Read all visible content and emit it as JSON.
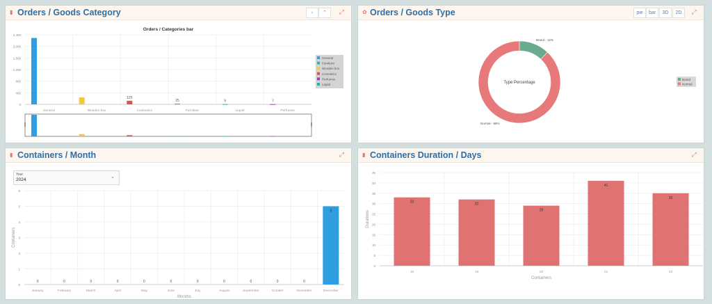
{
  "panels": {
    "goods_category": {
      "title": "Orders / Goods Category",
      "icon": "bar-chart-icon"
    },
    "goods_type": {
      "title": "Orders / Goods Type",
      "icon": "pie-chart-icon",
      "toolbar": [
        "pie",
        "bar",
        "3D",
        "2D"
      ]
    },
    "containers_month": {
      "title": "Containers / Month",
      "icon": "bar-chart-icon",
      "year_select": {
        "label": "Year",
        "value": "2024"
      }
    },
    "containers_duration": {
      "title": "Containers Duration / Days",
      "icon": "bar-chart-icon"
    }
  },
  "chart_data": [
    {
      "type": "bar",
      "title": "Orders / Categories bar",
      "categories": [
        "General",
        "Wooden box",
        "Cosmetics",
        "Furniture",
        "Liquid",
        "Perfumes"
      ],
      "values": [
        2290,
        240,
        125,
        25,
        9,
        7
      ],
      "data_labels": [
        null,
        null,
        "125",
        "25",
        "9",
        "7"
      ],
      "colors": [
        "#2f9ee0",
        "#f5c842",
        "#e05252",
        "#3bb39a",
        "#1abc9c",
        "#8e44ad"
      ],
      "ylim": [
        0,
        2400
      ],
      "yticks": [
        "0",
        "400",
        "800",
        "1,200",
        "1,600",
        "2,000",
        "2,400"
      ],
      "legend": {
        "position": "right",
        "entries": [
          {
            "name": "General",
            "color": "#2f9ee0"
          },
          {
            "name": "Furniture",
            "color": "#3bb39a"
          },
          {
            "name": "Wooden box",
            "color": "#f5c842"
          },
          {
            "name": "Cosmetics",
            "color": "#e05252"
          },
          {
            "name": "Perfumes",
            "color": "#8e44ad"
          },
          {
            "name": "Liquid",
            "color": "#1abc9c"
          }
        ]
      },
      "grid": true,
      "navigator": true
    },
    {
      "type": "pie",
      "center_label": "Type Percentage",
      "slices": [
        {
          "name": "Brand",
          "value": 12,
          "label": "Brand - 12%",
          "color": "#6aab8e"
        },
        {
          "name": "Normal",
          "value": 88,
          "label": "Normal - 88%",
          "color": "#e8797b"
        }
      ],
      "legend": {
        "position": "right"
      }
    },
    {
      "type": "bar",
      "categories": [
        "January",
        "February",
        "March",
        "April",
        "May",
        "June",
        "July",
        "August",
        "September",
        "October",
        "November",
        "December"
      ],
      "values": [
        0,
        0,
        0,
        0,
        0,
        0,
        0,
        0,
        0,
        0,
        0,
        5
      ],
      "color": "#2f9ee0",
      "xlabel": "Months",
      "ylabel": "Containers",
      "ylim": [
        0,
        6
      ],
      "yticks": [
        "0",
        "1",
        "2",
        "3",
        "4",
        "5",
        "6"
      ],
      "grid": true
    },
    {
      "type": "bar",
      "categories": [
        "18",
        "19",
        "20",
        "21",
        "22"
      ],
      "values": [
        33,
        32,
        29,
        41,
        35
      ],
      "color": "#e07272",
      "xlabel": "Containers",
      "ylabel": "Durations",
      "ylim": [
        0,
        45
      ],
      "yticks": [
        "0",
        "5",
        "10",
        "15",
        "20",
        "25",
        "30",
        "35",
        "40",
        "45"
      ],
      "grid": true
    }
  ]
}
